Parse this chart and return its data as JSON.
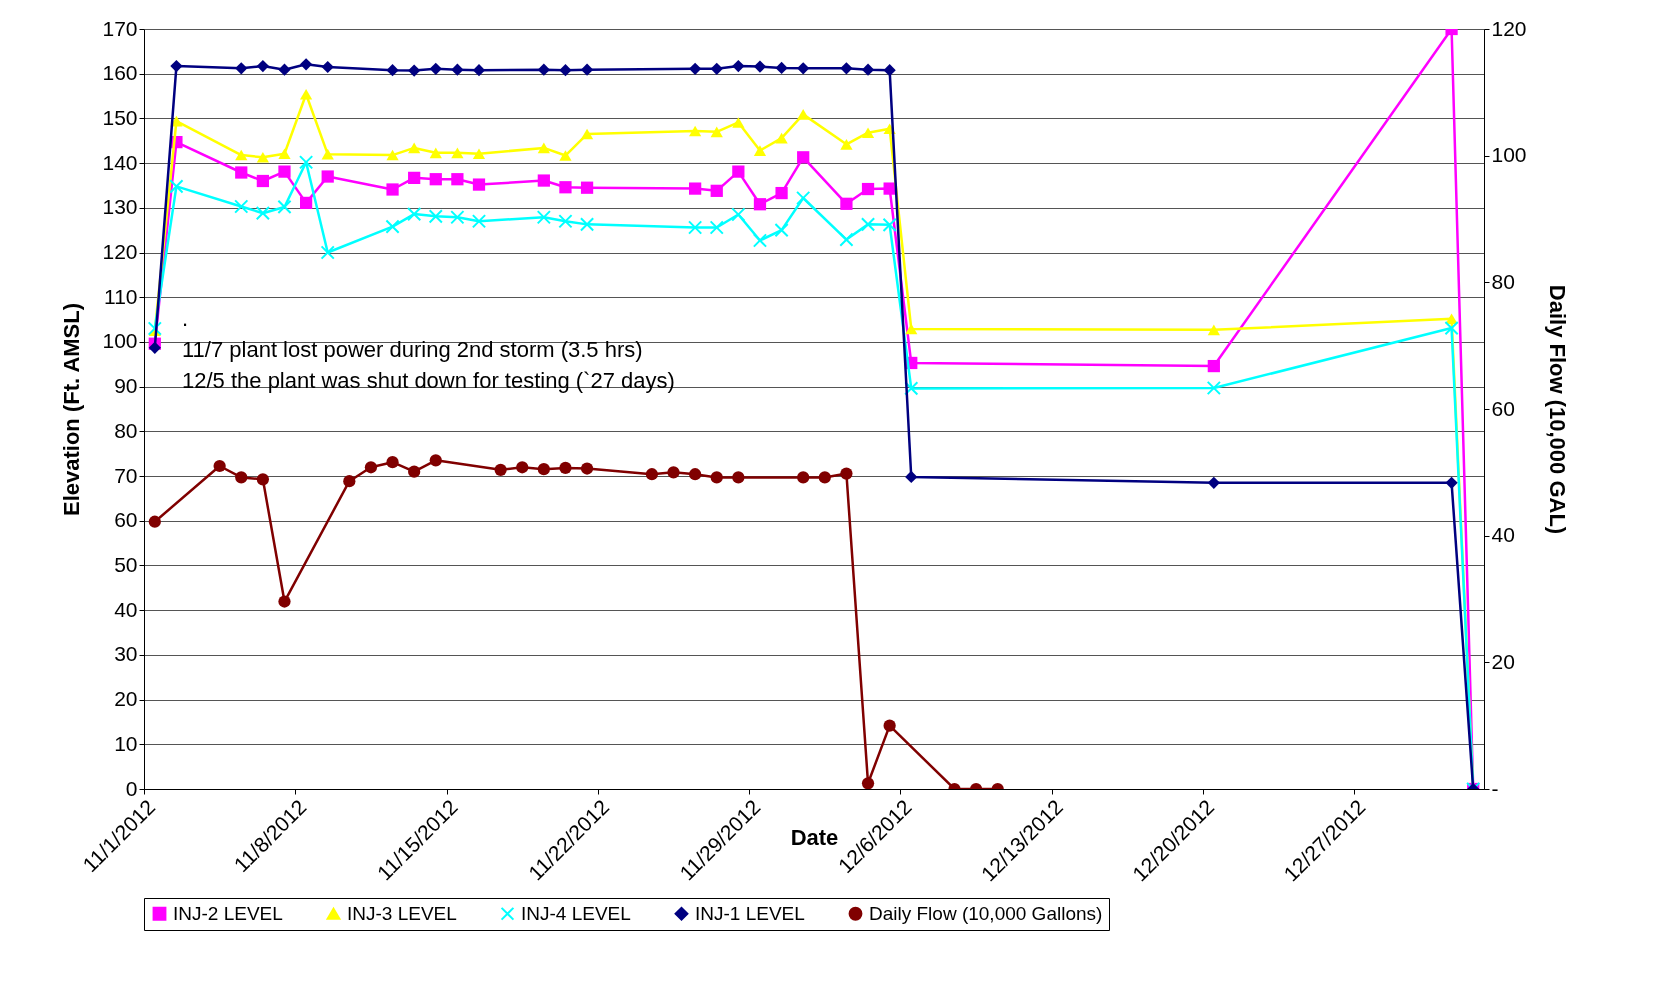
{
  "chart_data": {
    "type": "line",
    "xlabel": "Date",
    "ylabel": "Elevation (Ft. AMSL)",
    "y2label": "Daily Flow (10,000 GAL)",
    "x": [
      "2012-11-01T12:00",
      "2012-11-02T12:00",
      "2012-11-05T12:00",
      "2012-11-06T12:00",
      "2012-11-07T12:00",
      "2012-11-08T12:00",
      "2012-11-09T12:00",
      "2012-11-12T12:00",
      "2012-11-13T12:00",
      "2012-11-14T12:00",
      "2012-11-15T12:00",
      "2012-11-16T12:00",
      "2012-11-19T12:00",
      "2012-11-20T12:00",
      "2012-11-21T12:00",
      "2012-11-26T12:00",
      "2012-11-27T12:00",
      "2012-11-28T12:00",
      "2012-11-29T12:00",
      "2012-11-30T12:00",
      "2012-12-01T12:00",
      "2012-12-03T12:00",
      "2012-12-04T12:00",
      "2012-12-05T12:00",
      "2012-12-06T12:00",
      "2012-12-20T12:00",
      "2012-12-31T12:00",
      "2013-01-01T12:00"
    ],
    "series": [
      {
        "name": "INJ-2 LEVEL",
        "color": "#ff00ff",
        "marker": "square",
        "values": [
          99.6,
          144.7,
          137.9,
          136.0,
          138.1,
          131.1,
          137.0,
          134.1,
          136.7,
          136.4,
          136.4,
          135.2,
          136.1,
          134.6,
          134.5,
          134.3,
          133.8,
          138.1,
          130.8,
          133.3,
          141.3,
          130.9,
          134.2,
          134.3,
          95.3,
          94.6,
          170,
          0
        ]
      },
      {
        "name": "INJ-3 LEVEL",
        "color": "#ffff00",
        "marker": "triangle",
        "values": [
          102.5,
          149.4,
          141.8,
          141.3,
          142.1,
          155.4,
          142.0,
          141.8,
          143.4,
          142.3,
          142.3,
          142.1,
          143.4,
          141.7,
          146.5,
          147.2,
          147.0,
          149.1,
          142.8,
          145.6,
          150.9,
          144.2,
          146.8,
          147.7,
          102.9,
          102.7,
          105.2,
          0
        ]
      },
      {
        "name": "INJ-4 LEVEL",
        "color": "#00ffff",
        "marker": "cross",
        "values": [
          103.0,
          134.8,
          130.3,
          128.8,
          130.2,
          140.2,
          120.0,
          125.8,
          128.6,
          128.1,
          127.9,
          127.0,
          127.9,
          127.0,
          126.3,
          125.6,
          125.6,
          128.5,
          122.7,
          125.0,
          132.2,
          122.9,
          126.3,
          126.2,
          89.6,
          89.7,
          103.1,
          0
        ]
      },
      {
        "name": "INJ-1 LEVEL",
        "color": "#000080",
        "marker": "diamond",
        "values": [
          98.7,
          161.7,
          161.2,
          161.7,
          160.9,
          162.1,
          161.5,
          160.8,
          160.7,
          161.1,
          160.9,
          160.8,
          160.9,
          160.8,
          160.9,
          161.1,
          161.1,
          161.7,
          161.6,
          161.3,
          161.2,
          161.2,
          160.9,
          160.8,
          69.8,
          68.5,
          68.5,
          0
        ]
      },
      {
        "name": "Daily Flow (10,000 Gallons)",
        "color": "#800000",
        "marker": "circle",
        "axis": "y2",
        "x": [
          "2012-11-01T12:00",
          "2012-11-04T12:00",
          "2012-11-05T12:00",
          "2012-11-06T12:00",
          "2012-11-07T12:00",
          "2012-11-10T12:00",
          "2012-11-11T12:00",
          "2012-11-12T12:00",
          "2012-11-13T12:00",
          "2012-11-14T12:00",
          "2012-11-17T12:00",
          "2012-11-18T12:00",
          "2012-11-19T12:00",
          "2012-11-20T12:00",
          "2012-11-21T12:00",
          "2012-11-24T12:00",
          "2012-11-25T12:00",
          "2012-11-26T12:00",
          "2012-11-27T12:00",
          "2012-11-28T12:00",
          "2012-12-01T12:00",
          "2012-12-02T12:00",
          "2012-12-03T12:00",
          "2012-12-04T12:00",
          "2012-12-05T12:00",
          "2012-12-08T12:00",
          "2012-12-09T12:00",
          "2012-12-10T12:00"
        ],
        "values": [
          42.2,
          51.0,
          49.2,
          48.9,
          29.6,
          48.6,
          50.8,
          51.6,
          50.1,
          51.9,
          50.4,
          50.8,
          50.5,
          50.7,
          50.6,
          49.7,
          50.0,
          49.7,
          49.2,
          49.2,
          49.2,
          49.2,
          49.8,
          0.9,
          10.0,
          0,
          0,
          0
        ]
      }
    ],
    "xlim": [
      "2012-11-01",
      "2013-01-02"
    ],
    "xticks": [
      {
        "value": "2012-11-01",
        "label": "11/1/2012"
      },
      {
        "value": "2012-11-08",
        "label": "11/8/2012"
      },
      {
        "value": "2012-11-15",
        "label": "11/15/2012"
      },
      {
        "value": "2012-11-22",
        "label": "11/22/2012"
      },
      {
        "value": "2012-11-29",
        "label": "11/29/2012"
      },
      {
        "value": "2012-12-06",
        "label": "12/6/2012"
      },
      {
        "value": "2012-12-13",
        "label": "12/13/2012"
      },
      {
        "value": "2012-12-20",
        "label": "12/20/2012"
      },
      {
        "value": "2012-12-27",
        "label": "12/27/2012"
      }
    ],
    "ylim": [
      0,
      170
    ],
    "yticks": [
      0,
      10,
      20,
      30,
      40,
      50,
      60,
      70,
      80,
      90,
      100,
      110,
      120,
      130,
      140,
      150,
      160,
      170
    ],
    "y2lim": [
      0,
      120
    ],
    "y2ticks": [
      {
        "value": 0,
        "label": "-"
      },
      20,
      40,
      60,
      80,
      100,
      120
    ],
    "grid": "y",
    "legend": "bottom",
    "line_style": "solid",
    "annotations": [
      ".",
      "11/7 plant lost power during 2nd storm (3.5 hrs)",
      "12/5 the plant was shut down for testing (`27 days)"
    ]
  }
}
